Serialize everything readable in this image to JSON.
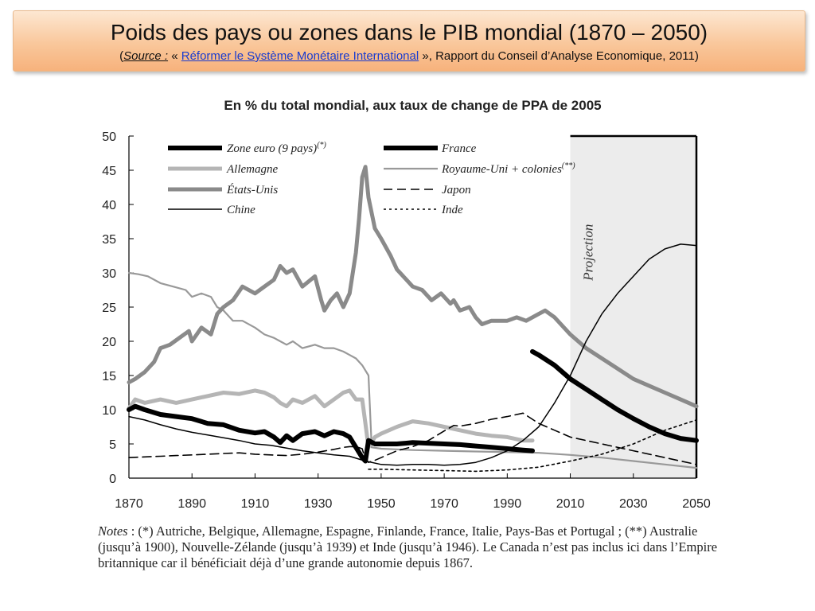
{
  "slide": {
    "title": "Poids des pays ou zones dans le PIB mondial (1870 – 2050)",
    "source_open": "(",
    "source_label": "Source :",
    "source_pre": " « ",
    "source_link": "Réformer le Système Monétaire International",
    "source_post": " », Rapport du Conseil d’Analyse Economique, 2011)"
  },
  "notes": {
    "label": "Notes",
    "text": " : (*) Autriche, Belgique, Allemagne, Espagne, Finlande, France, Italie, Pays-Bas et Portugal ; (**) Australie (jusqu’à 1900), Nouvelle-Zélande (jusqu’à 1939) et Inde (jusqu’à 1946). Le Canada n’est pas inclus ici dans l’Empire britannique car il bénéficiait déjà d’une grande autonomie depuis 1867."
  },
  "chart_data": {
    "type": "line",
    "title": "En % du total mondial, aux taux de change de PPA de 2005",
    "xlim": [
      1870,
      2050
    ],
    "ylim": [
      0,
      50
    ],
    "xticks": [
      1870,
      1890,
      1910,
      1930,
      1950,
      1970,
      1990,
      2010,
      2030,
      2050
    ],
    "yticks": [
      0,
      5,
      10,
      15,
      20,
      25,
      30,
      35,
      40,
      45,
      50
    ],
    "projection": {
      "from": 2010,
      "to": 2050,
      "label": "Projection"
    },
    "legend_position": "top",
    "grid": false,
    "series": [
      {
        "name": "Zone euro (9 pays)",
        "name_sup": "(*)",
        "style": "thick-black",
        "color": "#000000",
        "x": [
          1870,
          1872,
          1875,
          1880,
          1885,
          1890,
          1895,
          1900,
          1905,
          1910,
          1913,
          1916,
          1918,
          1920,
          1922,
          1925,
          1929,
          1932,
          1935,
          1938,
          1940,
          1942,
          1944,
          1945,
          1946,
          1948,
          1950,
          1955,
          1960,
          1965,
          1970,
          1975,
          1980,
          1985,
          1990,
          1995,
          1998
        ],
        "y": [
          10,
          10.5,
          10,
          9.3,
          9,
          8.7,
          8,
          7.8,
          7,
          6.6,
          6.8,
          6,
          5.2,
          6.2,
          5.5,
          6.5,
          6.8,
          6.2,
          6.8,
          6.5,
          6,
          4.5,
          3,
          2.5,
          5.5,
          5,
          5,
          5,
          5.2,
          5.1,
          5,
          4.9,
          4.7,
          4.5,
          4.3,
          4.1,
          4
        ]
      },
      {
        "name": "France",
        "style": "thick-black",
        "color": "#000000",
        "x": [
          1998,
          2000,
          2005,
          2010,
          2015,
          2020,
          2025,
          2030,
          2035,
          2040,
          2045,
          2050
        ],
        "y": [
          18.5,
          18,
          16.5,
          14.5,
          13,
          11.5,
          10,
          8.7,
          7.5,
          6.5,
          5.8,
          5.5
        ]
      },
      {
        "name": "Allemagne",
        "style": "light-grey",
        "color": "#b3b3b3",
        "x": [
          1870,
          1872,
          1875,
          1880,
          1885,
          1890,
          1895,
          1900,
          1905,
          1910,
          1913,
          1916,
          1918,
          1920,
          1922,
          1925,
          1929,
          1932,
          1935,
          1938,
          1940,
          1942,
          1944,
          1945,
          1946,
          1948,
          1950,
          1955,
          1960,
          1965,
          1970,
          1975,
          1980,
          1985,
          1990,
          1995,
          1998
        ],
        "y": [
          10.2,
          11.5,
          11,
          11.5,
          11,
          11.5,
          12,
          12.5,
          12.3,
          12.8,
          12.5,
          11.8,
          11,
          10.5,
          11.5,
          11,
          12,
          10.5,
          11.5,
          12.5,
          12.8,
          11.5,
          11.5,
          8,
          4.5,
          6,
          6.5,
          7.5,
          8.3,
          8,
          7.5,
          7,
          6.5,
          6.2,
          6,
          5.5,
          5.5
        ]
      },
      {
        "name": "Royaume-Uni + colonies",
        "name_sup": "(**)",
        "style": "medium-grey",
        "color": "#9a9a9a",
        "x": [
          1870,
          1873,
          1876,
          1880,
          1884,
          1888,
          1890,
          1893,
          1896,
          1898,
          1900,
          1903,
          1906,
          1910,
          1913,
          1916,
          1918,
          1920,
          1922,
          1925,
          1929,
          1932,
          1935,
          1938,
          1940,
          1942,
          1944,
          1946,
          1947,
          1950,
          1960,
          1970,
          1980,
          1990,
          2000,
          2010,
          2020,
          2030,
          2040,
          2050
        ],
        "y": [
          30,
          29.8,
          29.5,
          28.5,
          28,
          27.5,
          26.5,
          27,
          26.5,
          25,
          24.5,
          23,
          23,
          22,
          21,
          20.5,
          20,
          19.5,
          20,
          19,
          19.5,
          19,
          19,
          18.5,
          18,
          17.5,
          16.5,
          15,
          4.5,
          4.3,
          4.1,
          4,
          3.9,
          3.8,
          3.7,
          3.4,
          3,
          2.5,
          2,
          1.5
        ]
      },
      {
        "name": "États-Unis",
        "style": "thick-grey",
        "color": "#8c8c8c",
        "x": [
          1870,
          1872,
          1875,
          1878,
          1880,
          1883,
          1886,
          1889,
          1890,
          1893,
          1896,
          1898,
          1900,
          1903,
          1906,
          1910,
          1913,
          1916,
          1918,
          1920,
          1922,
          1925,
          1929,
          1931,
          1932,
          1934,
          1936,
          1938,
          1940,
          1942,
          1943,
          1944,
          1945,
          1946,
          1948,
          1950,
          1953,
          1955,
          1958,
          1960,
          1963,
          1966,
          1969,
          1972,
          1973,
          1975,
          1978,
          1980,
          1982,
          1985,
          1988,
          1990,
          1993,
          1996,
          2000,
          2002,
          2005,
          2010,
          2015,
          2020,
          2025,
          2030,
          2035,
          2040,
          2045,
          2050
        ],
        "y": [
          14,
          14.5,
          15.5,
          17,
          19,
          19.5,
          20.5,
          21.5,
          20,
          22,
          21,
          24,
          25,
          26,
          28,
          27,
          28,
          29,
          31,
          30,
          30.5,
          28,
          29.5,
          26,
          24.5,
          26,
          27,
          25,
          27,
          33,
          38,
          44,
          45.5,
          41,
          36.5,
          35,
          32.5,
          30.5,
          29,
          28,
          27.5,
          26,
          27,
          25.5,
          26,
          24.5,
          25,
          23.5,
          22.5,
          23,
          23,
          23,
          23.5,
          23,
          24,
          24.5,
          23.5,
          21,
          19,
          17.5,
          16,
          14.5,
          13.5,
          12.5,
          11.5,
          10.5
        ]
      },
      {
        "name": "Japon",
        "style": "dashed",
        "color": "#000000",
        "x": [
          1870,
          1875,
          1880,
          1885,
          1890,
          1895,
          1900,
          1905,
          1910,
          1915,
          1920,
          1925,
          1930,
          1935,
          1938,
          1940,
          1942,
          1944,
          1945,
          1946,
          1948,
          1950,
          1955,
          1960,
          1965,
          1970,
          1973,
          1975,
          1980,
          1985,
          1990,
          1995,
          2000,
          2005,
          2010,
          2020,
          2030,
          2040,
          2050
        ],
        "y": [
          3,
          3.1,
          3.2,
          3.3,
          3.4,
          3.5,
          3.6,
          3.7,
          3.5,
          3.4,
          3.3,
          3.5,
          3.8,
          4.2,
          4.5,
          4.6,
          4.6,
          4.3,
          2.7,
          2.3,
          2.6,
          3,
          4,
          4.6,
          5.5,
          6.9,
          7.7,
          7.6,
          8,
          8.6,
          9,
          9.5,
          8,
          7,
          6,
          5,
          4,
          3,
          2
        ]
      },
      {
        "name": "Chine",
        "style": "thin-black",
        "color": "#000000",
        "x": [
          1870,
          1875,
          1880,
          1885,
          1890,
          1895,
          1900,
          1905,
          1910,
          1915,
          1920,
          1925,
          1930,
          1935,
          1940,
          1945,
          1950,
          1955,
          1960,
          1965,
          1970,
          1975,
          1980,
          1985,
          1990,
          1995,
          2000,
          2005,
          2010,
          2015,
          2020,
          2025,
          2030,
          2035,
          2040,
          2045,
          2050
        ],
        "y": [
          9,
          8.5,
          7.8,
          7.2,
          6.7,
          6.3,
          5.9,
          5.5,
          5,
          4.8,
          4.4,
          4,
          3.7,
          3.4,
          3.2,
          2.5,
          2,
          1.9,
          2,
          2,
          1.9,
          2,
          2.3,
          3,
          4,
          5.5,
          7.5,
          11,
          15,
          20,
          24,
          27,
          29.5,
          32,
          33.5,
          34.2,
          34
        ]
      },
      {
        "name": "Inde",
        "style": "dotted",
        "color": "#000000",
        "x": [
          1946,
          1950,
          1960,
          1970,
          1980,
          1990,
          2000,
          2010,
          2020,
          2030,
          2040,
          2050
        ],
        "y": [
          1.3,
          1.3,
          1.2,
          1.1,
          1,
          1.2,
          1.6,
          2.5,
          3.5,
          5,
          7,
          8.5
        ]
      }
    ]
  }
}
